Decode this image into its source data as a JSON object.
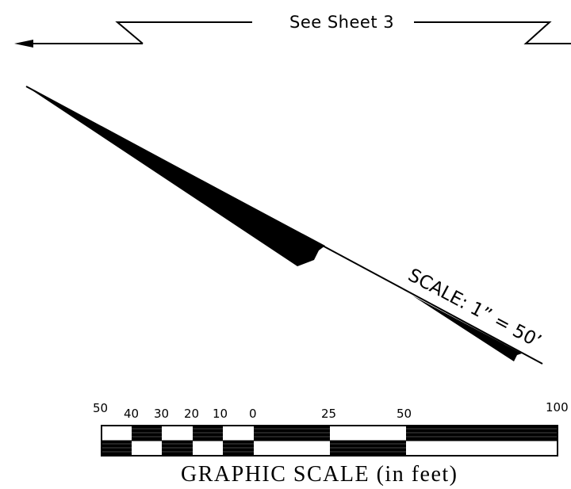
{
  "match_line": {
    "label": "See Sheet 3"
  },
  "scale_note": {
    "text": "SCALE: 1” = 50’"
  },
  "graphic_scale": {
    "title": "GRAPHIC SCALE (in feet)",
    "tick_labels": [
      "50",
      "40",
      "30",
      "20",
      "10",
      "0",
      "25",
      "50",
      "100"
    ]
  },
  "colors": {
    "ink": "#000000",
    "paper": "#ffffff"
  }
}
